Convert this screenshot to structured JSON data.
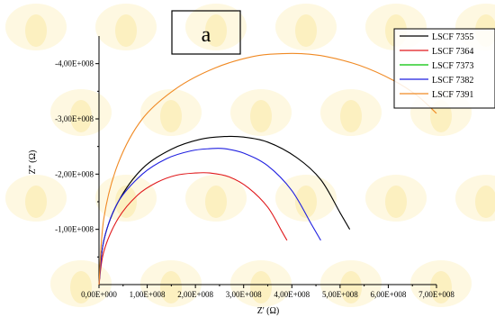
{
  "chart_data": {
    "type": "line",
    "panel_label": "a",
    "xlabel": "Z' (Ω)",
    "ylabel": "Z\" (Ω)",
    "xlim": [
      0,
      700000000
    ],
    "ylim": [
      0,
      -450000000
    ],
    "y_reversed": true,
    "grid": false,
    "legend_position": "top-right",
    "x_ticks": [
      {
        "value": 0,
        "label": "0,00E+000"
      },
      {
        "value": 100000000,
        "label": "1,00E+008"
      },
      {
        "value": 200000000,
        "label": "2,00E+008"
      },
      {
        "value": 300000000,
        "label": "3,00E+008"
      },
      {
        "value": 400000000,
        "label": "4,00E+008"
      },
      {
        "value": 500000000,
        "label": "5,00E+008"
      },
      {
        "value": 600000000,
        "label": "6,00E+008"
      },
      {
        "value": 700000000,
        "label": "7,00E+008"
      }
    ],
    "y_ticks": [
      {
        "value": -100000000,
        "label": "-1,00E+008"
      },
      {
        "value": -200000000,
        "label": "-2,00E+008"
      },
      {
        "value": -300000000,
        "label": "-3,00E+008"
      },
      {
        "value": -400000000,
        "label": "-4,00E+008"
      }
    ],
    "series": [
      {
        "name": "LSCF 7355",
        "color": "#000000",
        "x": [
          0,
          10000000,
          40000000,
          90000000,
          150000000,
          210000000,
          260000000,
          300000000,
          350000000,
          410000000,
          460000000,
          500000000,
          520000000
        ],
        "y": [
          0,
          -80000000,
          -150000000,
          -210000000,
          -245000000,
          -263000000,
          -268000000,
          -267000000,
          -258000000,
          -230000000,
          -190000000,
          -130000000,
          -100000000
        ]
      },
      {
        "name": "LSCF 7364",
        "color": "#e0191c",
        "x": [
          0,
          10000000,
          40000000,
          80000000,
          120000000,
          160000000,
          200000000,
          230000000,
          270000000,
          310000000,
          350000000,
          380000000,
          390000000
        ],
        "y": [
          0,
          -60000000,
          -120000000,
          -162000000,
          -185000000,
          -198000000,
          -202000000,
          -202000000,
          -195000000,
          -175000000,
          -140000000,
          -95000000,
          -80000000
        ]
      },
      {
        "name": "LSCF 7373",
        "color": "#00c000",
        "x": [],
        "y": []
      },
      {
        "name": "LSCF 7382",
        "color": "#1f1fe0",
        "x": [
          0,
          10000000,
          40000000,
          90000000,
          140000000,
          190000000,
          230000000,
          260000000,
          300000000,
          350000000,
          400000000,
          440000000,
          460000000
        ],
        "y": [
          0,
          -80000000,
          -150000000,
          -200000000,
          -228000000,
          -242000000,
          -246000000,
          -246000000,
          -238000000,
          -215000000,
          -170000000,
          -110000000,
          -80000000
        ]
      },
      {
        "name": "LSCF 7391",
        "color": "#f08a24",
        "x": [
          0,
          10000000,
          40000000,
          90000000,
          160000000,
          240000000,
          320000000,
          380000000,
          420000000,
          470000000,
          540000000,
          610000000,
          660000000,
          700000000
        ],
        "y": [
          0,
          -120000000,
          -220000000,
          -300000000,
          -355000000,
          -392000000,
          -413000000,
          -418000000,
          -418000000,
          -413000000,
          -397000000,
          -370000000,
          -342000000,
          -310000000
        ]
      }
    ]
  }
}
